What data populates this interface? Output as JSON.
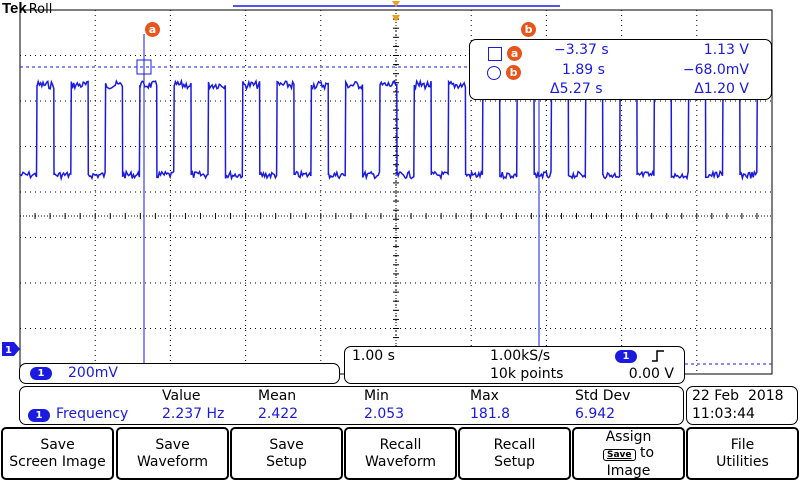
{
  "brand": {
    "logo": "Tek",
    "mode": "Roll"
  },
  "cursors": {
    "a": {
      "label": "a",
      "time": "−3.37 s",
      "value": "1.13 V"
    },
    "b": {
      "label": "b",
      "time": "1.89 s",
      "value": "−68.0mV"
    },
    "delta_time": "Δ5.27 s",
    "delta_value": "Δ1.20 V"
  },
  "channel": {
    "number": "1",
    "scale": "200mV"
  },
  "horizontal": {
    "timebase": "1.00 s",
    "sample_rate": "1.00kS/s",
    "record_length": "10k points",
    "trigger_channel": "1",
    "trigger_level": "0.00 V"
  },
  "measurement": {
    "headers": {
      "value": "Value",
      "mean": "Mean",
      "min": "Min",
      "max": "Max",
      "std_dev": "Std Dev"
    },
    "channel": "1",
    "name": "Frequency",
    "value": "2.237 Hz",
    "mean": "2.422",
    "min": "2.053",
    "max": "181.8",
    "std_dev": "6.942"
  },
  "datetime": {
    "date": "22 Feb  2018",
    "time": "11:03:44"
  },
  "softkeys": [
    {
      "line1": "Save",
      "line2": "Screen Image"
    },
    {
      "line1": "Save",
      "line2": "Waveform"
    },
    {
      "line1": "Save",
      "line2": "Setup"
    },
    {
      "line1": "Recall",
      "line2": "Waveform"
    },
    {
      "line1": "Recall",
      "line2": "Setup"
    },
    {
      "line1": "Assign",
      "badge": "Save",
      "to": "to",
      "line3": "Image"
    },
    {
      "line1": "File",
      "line2": "Utilities"
    }
  ],
  "colors": {
    "trace": "#1a1ae0",
    "cursor_badge": "#e8541a",
    "graticule": "#000000"
  }
}
